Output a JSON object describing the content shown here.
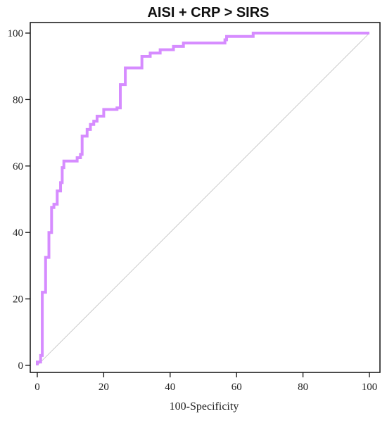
{
  "chart_data": {
    "type": "line",
    "title": "AISI + CRP > SIRS",
    "xlabel": "100-Specificity",
    "ylabel": "",
    "xlim": [
      0,
      100
    ],
    "ylim": [
      0,
      100
    ],
    "x_ticks": [
      0,
      20,
      40,
      60,
      80,
      100
    ],
    "y_ticks": [
      0,
      20,
      40,
      60,
      80,
      100
    ],
    "grid": false,
    "series": [
      {
        "color": "#d68cff",
        "points": [
          [
            0,
            0
          ],
          [
            0,
            1
          ],
          [
            1,
            1
          ],
          [
            1,
            3
          ],
          [
            1.5,
            3
          ],
          [
            1.5,
            22
          ],
          [
            2.5,
            22
          ],
          [
            2.5,
            32.5
          ],
          [
            3.5,
            32.5
          ],
          [
            3.5,
            40
          ],
          [
            4.3,
            40
          ],
          [
            4.3,
            47.5
          ],
          [
            5,
            47.5
          ],
          [
            5,
            48.5
          ],
          [
            6,
            48.5
          ],
          [
            6,
            52.5
          ],
          [
            7,
            52.5
          ],
          [
            7,
            55
          ],
          [
            7.5,
            55
          ],
          [
            7.5,
            59.5
          ],
          [
            8,
            59.5
          ],
          [
            8,
            61.5
          ],
          [
            12,
            61.5
          ],
          [
            12,
            62.5
          ],
          [
            13,
            62.5
          ],
          [
            13,
            63.5
          ],
          [
            13.5,
            63.5
          ],
          [
            13.5,
            69
          ],
          [
            15,
            69
          ],
          [
            15,
            71
          ],
          [
            16,
            71
          ],
          [
            16,
            72.5
          ],
          [
            17,
            72.5
          ],
          [
            17,
            73.5
          ],
          [
            18,
            73.5
          ],
          [
            18,
            75
          ],
          [
            20,
            75
          ],
          [
            20,
            77
          ],
          [
            24,
            77
          ],
          [
            24,
            77.5
          ],
          [
            25,
            77.5
          ],
          [
            25,
            84.5
          ],
          [
            26.5,
            84.5
          ],
          [
            26.5,
            89.5
          ],
          [
            31.5,
            89.5
          ],
          [
            31.5,
            93
          ],
          [
            34,
            93
          ],
          [
            34,
            94
          ],
          [
            37,
            94
          ],
          [
            37,
            95
          ],
          [
            41,
            95
          ],
          [
            41,
            96
          ],
          [
            44,
            96
          ],
          [
            44,
            97
          ],
          [
            56.5,
            97
          ],
          [
            56.5,
            98
          ],
          [
            57,
            98
          ],
          [
            57,
            99
          ],
          [
            65,
            99
          ],
          [
            65,
            100
          ],
          [
            100,
            100
          ]
        ]
      },
      {
        "color": "#c0c0c0",
        "points": [
          [
            0,
            0
          ],
          [
            100,
            100
          ]
        ]
      }
    ]
  }
}
